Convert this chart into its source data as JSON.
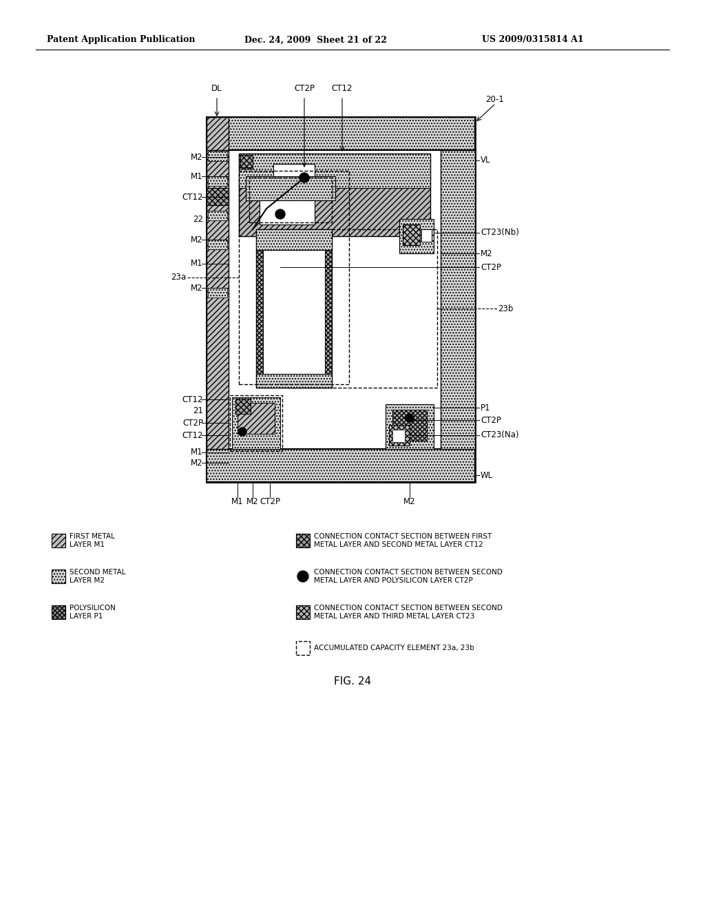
{
  "title": "FIG. 24",
  "header_left": "Patent Application Publication",
  "header_mid": "Dec. 24, 2009  Sheet 21 of 22",
  "header_right": "US 2009/0315814 A1",
  "bg_color": "#ffffff",
  "fs_header": 9,
  "fs_label": 8.5,
  "fs_legend": 7.5,
  "fs_title": 11
}
